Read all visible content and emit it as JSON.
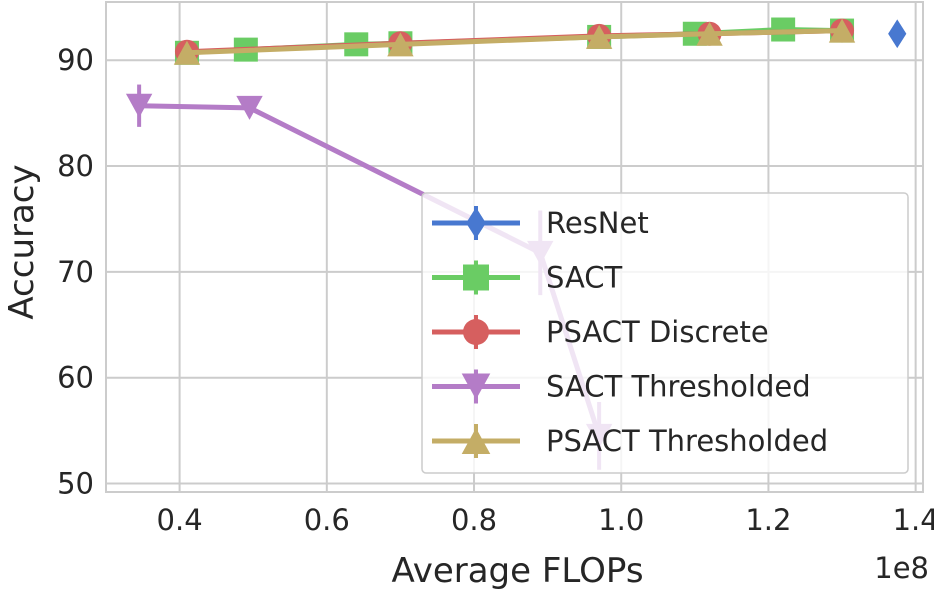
{
  "chart_data": {
    "type": "line",
    "title": "",
    "xlabel": "Average FLOPs",
    "ylabel": "Accuracy",
    "x_offset_label": "1e8",
    "xlim": [
      0.3,
      1.41
    ],
    "ylim": [
      49.2,
      95.5
    ],
    "xticks": [
      0.4,
      0.6,
      0.8,
      1.0,
      1.2,
      1.4
    ],
    "xtick_labels": [
      "0.4",
      "0.6",
      "0.8",
      "1.0",
      "1.2",
      "1.4"
    ],
    "yticks": [
      50,
      60,
      70,
      80,
      90
    ],
    "ytick_labels": [
      "50",
      "60",
      "70",
      "80",
      "90"
    ],
    "grid": true,
    "legend_position": "lower-right",
    "series": [
      {
        "name": "ResNet",
        "color": "#4878d0",
        "marker": "diamond",
        "x": [
          1.375
        ],
        "y": [
          92.5
        ],
        "err": [
          0
        ]
      },
      {
        "name": "SACT",
        "color": "#6acc64",
        "marker": "square",
        "x": [
          0.41,
          0.49,
          0.64,
          0.7,
          0.97,
          1.1,
          1.22,
          1.3
        ],
        "y": [
          90.7,
          91.0,
          91.5,
          91.6,
          92.2,
          92.5,
          92.9,
          92.8
        ],
        "err": [
          0,
          0,
          0,
          0,
          0,
          0,
          0,
          0
        ]
      },
      {
        "name": "PSACT Discrete",
        "color": "#d65f5f",
        "marker": "circle",
        "x": [
          0.41,
          0.7,
          0.97,
          1.12,
          1.3
        ],
        "y": [
          90.8,
          91.6,
          92.3,
          92.5,
          92.8
        ],
        "err": [
          0,
          0,
          0,
          0,
          0
        ]
      },
      {
        "name": "SACT Thresholded",
        "color": "#b47cc7",
        "marker": "triangle-down",
        "x": [
          0.345,
          0.495,
          0.89,
          0.97
        ],
        "y": [
          85.7,
          85.5,
          71.8,
          54.5
        ],
        "err": [
          2.0,
          0.4,
          4.0,
          3.2
        ]
      },
      {
        "name": "PSACT Thresholded",
        "color": "#c4ad66",
        "marker": "triangle-up",
        "x": [
          0.41,
          0.7,
          0.97,
          1.12,
          1.3
        ],
        "y": [
          90.7,
          91.5,
          92.2,
          92.5,
          92.8
        ],
        "err": [
          0,
          0,
          0,
          0,
          0
        ]
      }
    ]
  }
}
